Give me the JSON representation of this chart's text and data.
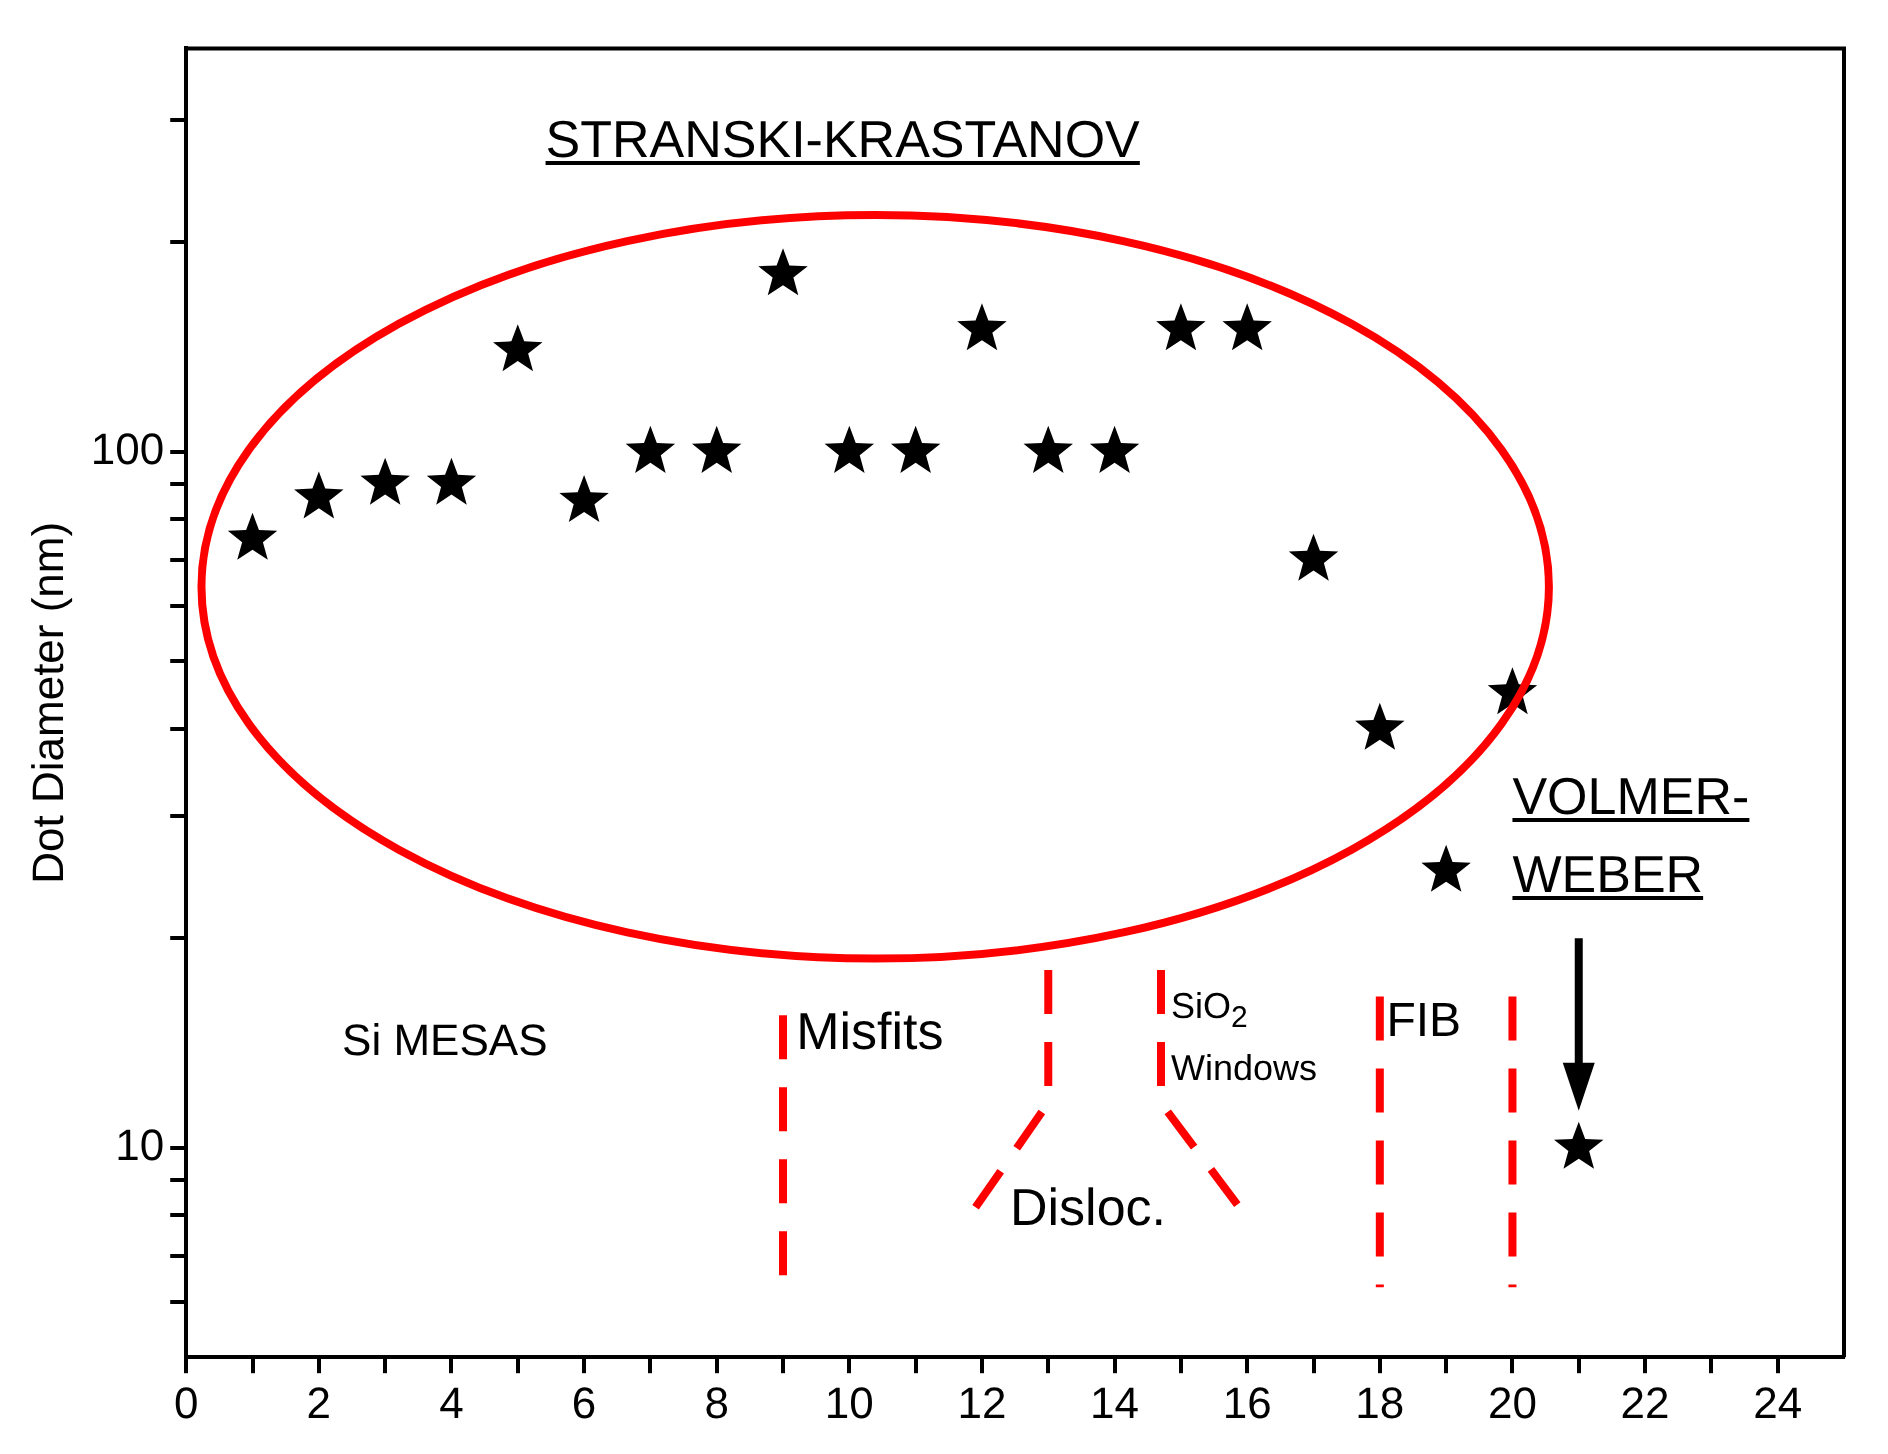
{
  "chart_data": {
    "type": "scatter",
    "ylabel": "Dot Diameter (nm)",
    "x": [
      1,
      2,
      3,
      4,
      5,
      6,
      7,
      8,
      9,
      10,
      11,
      12,
      13,
      14,
      15,
      16,
      17,
      18,
      19,
      20,
      21
    ],
    "series": [
      {
        "color": "#000000",
        "values": [
          75,
          86,
          90,
          90,
          140,
          85,
          100,
          100,
          180,
          100,
          100,
          150,
          100,
          100,
          150,
          150,
          70,
          40,
          25,
          45,
          10
        ]
      }
    ],
    "marker": "star",
    "log": "y",
    "grid": false,
    "legend": false,
    "xlim": [
      0,
      25
    ],
    "xticks": [
      0,
      {
        "value": 1,
        "label": null
      },
      2,
      {
        "value": 3,
        "label": null
      },
      4,
      {
        "value": 5,
        "label": null
      },
      6,
      {
        "value": 7,
        "label": null
      },
      8,
      {
        "value": 9,
        "label": null
      },
      10,
      {
        "value": 11,
        "label": null
      },
      12,
      {
        "value": 13,
        "label": null
      },
      14,
      {
        "value": 15,
        "label": null
      },
      16,
      {
        "value": 17,
        "label": null
      },
      18,
      {
        "value": 19,
        "label": null
      },
      20,
      {
        "value": 21,
        "label": null
      },
      22,
      {
        "value": 23,
        "label": null
      },
      24
    ],
    "ylim": [
      5,
      380
    ],
    "yticks": [
      {
        "value": 6,
        "label": null
      },
      {
        "value": 7,
        "label": null
      },
      {
        "value": 8,
        "label": null
      },
      {
        "value": 9,
        "label": null
      },
      10,
      {
        "value": 20,
        "label": null
      },
      {
        "value": 30,
        "label": null
      },
      {
        "value": 40,
        "label": null
      },
      {
        "value": 50,
        "label": null
      },
      {
        "value": 60,
        "label": null
      },
      {
        "value": 70,
        "label": null
      },
      {
        "value": 80,
        "label": null
      },
      {
        "value": 90,
        "label": null
      },
      100,
      {
        "value": 200,
        "label": null
      },
      {
        "value": 300,
        "label": null
      }
    ],
    "annotations": [
      "STRANSKI-KRASTANOV",
      "Si MESAS",
      "Misfits",
      "SiO$_{2}$ Windows",
      "FIB",
      "Disloc.",
      "VOLMER-WEBER"
    ]
  }
}
